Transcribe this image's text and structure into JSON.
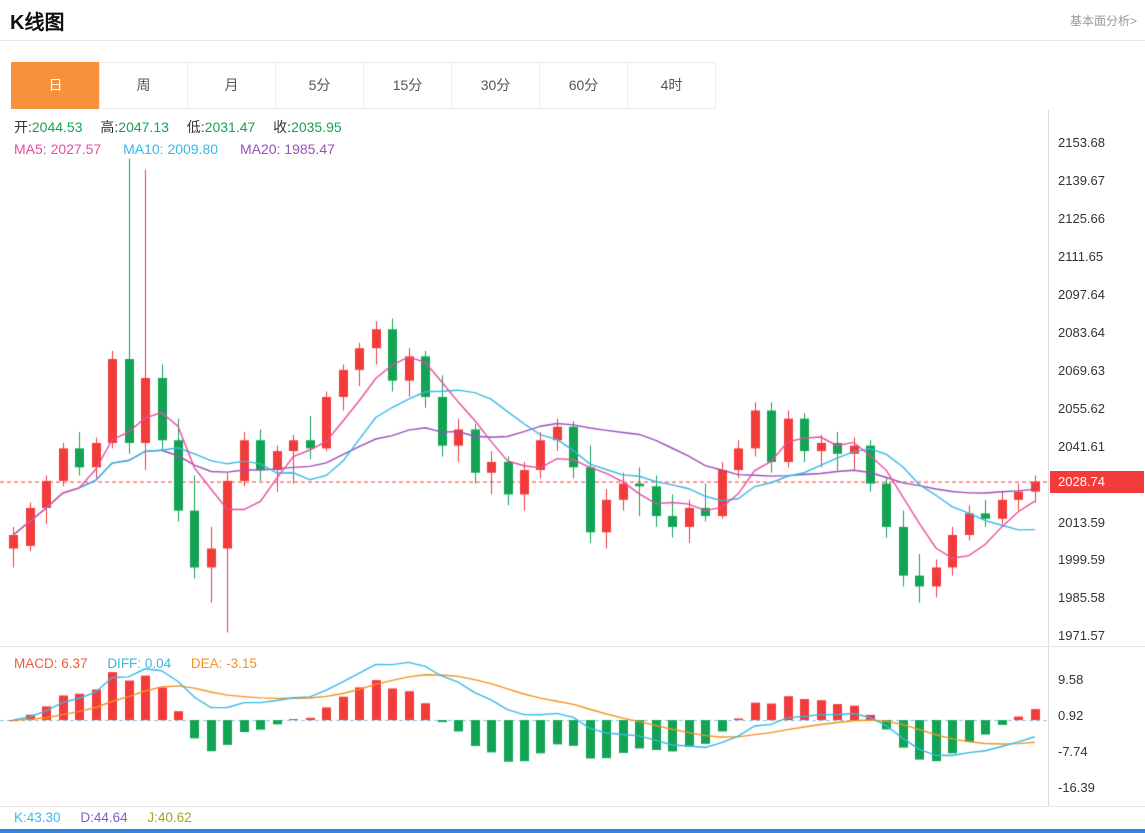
{
  "page": {
    "title": "K线图",
    "top_link": "基本面分析>"
  },
  "tabs": {
    "items": [
      {
        "key": "day",
        "label": "日",
        "active": true
      },
      {
        "key": "week",
        "label": "周",
        "active": false
      },
      {
        "key": "month",
        "label": "月",
        "active": false
      },
      {
        "key": "5min",
        "label": "5分",
        "active": false
      },
      {
        "key": "15min",
        "label": "15分",
        "active": false
      },
      {
        "key": "30min",
        "label": "30分",
        "active": false
      },
      {
        "key": "60min",
        "label": "60分",
        "active": false
      },
      {
        "key": "4hour",
        "label": "4时",
        "active": false
      }
    ]
  },
  "ohlc_bar": {
    "open_label": "开:",
    "open": "2044.53",
    "high_label": "高:",
    "high": "2047.13",
    "low_label": "低:",
    "low": "2031.47",
    "close_label": "收:",
    "close": "2035.95"
  },
  "ma_bar": {
    "ma5_label": "MA5:",
    "ma5": "2027.57",
    "ma10_label": "MA10:",
    "ma10": "2009.80",
    "ma20_label": "MA20:",
    "ma20": "1985.47"
  },
  "price_axis": {
    "labels": [
      "2153.68",
      "2139.67",
      "2125.66",
      "2111.65",
      "2097.64",
      "2083.64",
      "2069.63",
      "2055.62",
      "2041.61",
      "2013.59",
      "1999.59",
      "1985.58",
      "1971.57"
    ],
    "last_price": "2028.74"
  },
  "macd_bar": {
    "macd_label": "MACD:",
    "macd": "6.37",
    "diff_label": "DIFF:",
    "diff": "0.04",
    "dea_label": "DEA:",
    "dea": "-3.15"
  },
  "macd_axis": {
    "labels": [
      "9.58",
      "0.92",
      "-7.74",
      "-16.39"
    ]
  },
  "kdj_bar": {
    "k_label": "K:",
    "k": "43.30",
    "d_label": "D:",
    "d": "44.64",
    "j_label": "J:",
    "j": "40.62"
  },
  "colors": {
    "up": "#f23b3b",
    "down": "#12a454",
    "ma5": "#e94ca1",
    "ma10": "#35b9e6",
    "ma20": "#9b50ba",
    "dea": "#f5921f",
    "macd_value": "#f25b3b",
    "tab_active_bg": "#f7913e",
    "kdj_k": "#35b9e6",
    "kdj_d": "#8a5bc8",
    "kdj_j": "#a2a51d",
    "bottom_bar": "#2e86de",
    "zero_line": "#7ec9e8"
  },
  "chart_data": {
    "type": "candlestick",
    "title": "K线图",
    "period": "日",
    "legend_position": "top-left",
    "grid": false,
    "price_range": [
      1968,
      2166
    ],
    "y_axis_ticks": [
      2153.68,
      2139.67,
      2125.66,
      2111.65,
      2097.64,
      2083.64,
      2069.63,
      2055.62,
      2041.61,
      2013.59,
      1999.59,
      1985.58,
      1971.57
    ],
    "last_price": 2028.74,
    "ohlc_readout": {
      "open": 2044.53,
      "high": 2047.13,
      "low": 2031.47,
      "close": 2035.95
    },
    "ma_readout": {
      "ma5": 2027.57,
      "ma10": 2009.8,
      "ma20": 1985.47
    },
    "overlays": [
      "MA5",
      "MA10",
      "MA20"
    ],
    "candles": [
      [
        2004,
        2012,
        1997,
        2009
      ],
      [
        2005,
        2021,
        2003,
        2019
      ],
      [
        2019,
        2031,
        2013,
        2029
      ],
      [
        2029,
        2043,
        2027,
        2041
      ],
      [
        2041,
        2047,
        2031,
        2034
      ],
      [
        2034,
        2045,
        2030,
        2043
      ],
      [
        2043,
        2077,
        2041,
        2074
      ],
      [
        2074,
        2148,
        2039,
        2043
      ],
      [
        2043,
        2144,
        2033,
        2067
      ],
      [
        2067,
        2072,
        2040,
        2044
      ],
      [
        2044,
        2052,
        2014,
        2018
      ],
      [
        2018,
        2031,
        1993,
        1997
      ],
      [
        1997,
        2012,
        1984,
        2004
      ],
      [
        2004,
        2032,
        1973,
        2029
      ],
      [
        2029,
        2047,
        2027,
        2044
      ],
      [
        2044,
        2048,
        2029,
        2033
      ],
      [
        2033,
        2042,
        2025,
        2040
      ],
      [
        2040,
        2046,
        2028,
        2044
      ],
      [
        2044,
        2053,
        2037,
        2041
      ],
      [
        2041,
        2062,
        2040,
        2060
      ],
      [
        2060,
        2072,
        2055,
        2070
      ],
      [
        2070,
        2080,
        2064,
        2078
      ],
      [
        2078,
        2088,
        2072,
        2085
      ],
      [
        2085,
        2089,
        2062,
        2066
      ],
      [
        2066,
        2078,
        2060,
        2075
      ],
      [
        2075,
        2077,
        2056,
        2060
      ],
      [
        2060,
        2068,
        2038,
        2042
      ],
      [
        2042,
        2052,
        2036,
        2048
      ],
      [
        2048,
        2050,
        2028,
        2032
      ],
      [
        2032,
        2040,
        2024,
        2036
      ],
      [
        2036,
        2038,
        2020,
        2024
      ],
      [
        2024,
        2036,
        2018,
        2033
      ],
      [
        2033,
        2047,
        2030,
        2044
      ],
      [
        2044,
        2052,
        2040,
        2049
      ],
      [
        2049,
        2051,
        2030,
        2034
      ],
      [
        2034,
        2042,
        2006,
        2010
      ],
      [
        2010,
        2026,
        2004,
        2022
      ],
      [
        2022,
        2032,
        2018,
        2028
      ],
      [
        2028,
        2034,
        2016,
        2027
      ],
      [
        2027,
        2031,
        2012,
        2016
      ],
      [
        2016,
        2024,
        2008,
        2012
      ],
      [
        2012,
        2022,
        2006,
        2019
      ],
      [
        2019,
        2028,
        2014,
        2016
      ],
      [
        2016,
        2036,
        2015,
        2033
      ],
      [
        2033,
        2044,
        2030,
        2041
      ],
      [
        2041,
        2058,
        2038,
        2055
      ],
      [
        2055,
        2058,
        2032,
        2036
      ],
      [
        2036,
        2055,
        2034,
        2052
      ],
      [
        2052,
        2054,
        2036,
        2040
      ],
      [
        2040,
        2046,
        2034,
        2043
      ],
      [
        2043,
        2047,
        2033,
        2039
      ],
      [
        2039,
        2045,
        2033,
        2042
      ],
      [
        2042,
        2044,
        2025,
        2028
      ],
      [
        2028,
        2030,
        2008,
        2012
      ],
      [
        2012,
        2018,
        1990,
        1994
      ],
      [
        1994,
        2002,
        1984,
        1990
      ],
      [
        1990,
        2000,
        1986,
        1997
      ],
      [
        1997,
        2012,
        1994,
        2009
      ],
      [
        2009,
        2020,
        2007,
        2017
      ],
      [
        2017,
        2022,
        2012,
        2015
      ],
      [
        2015,
        2025,
        2013,
        2022
      ],
      [
        2022,
        2028,
        2018,
        2025
      ],
      [
        2025,
        2031,
        2021,
        2028.74
      ]
    ],
    "sub_chart": {
      "type": "MACD",
      "readout": {
        "MACD": 6.37,
        "DIFF": 0.04,
        "DEA": -3.15
      },
      "axis_ticks": [
        9.58,
        0.92,
        -7.74,
        -16.39
      ],
      "value_range": [
        -20.6,
        16.8
      ]
    },
    "kdj_readout": {
      "K": 43.3,
      "D": 44.64,
      "J": 40.62
    }
  }
}
